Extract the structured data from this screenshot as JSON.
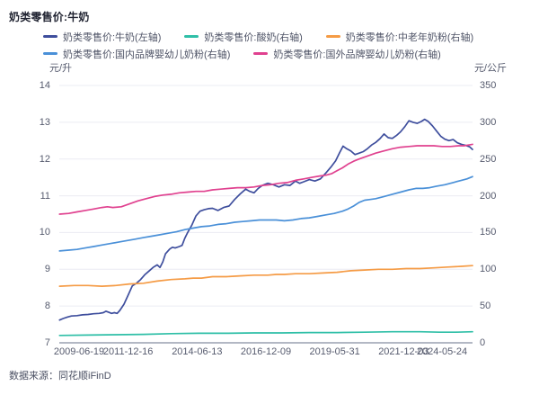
{
  "header": {
    "title": "奶类零售价:牛奶"
  },
  "footer": {
    "source": "数据来源：同花顺iFinD"
  },
  "colors": {
    "milk": "#3e4e9d",
    "yogurt": "#2fbfa7",
    "elder_powder": "#f59b45",
    "domestic_infant": "#4a90d8",
    "foreign_infant": "#e0418f",
    "grid": "#ebecf3",
    "axis_line": "#b3b8c4"
  },
  "chart_data": {
    "type": "line",
    "title": "奶类零售价:牛奶",
    "grid": true,
    "legend_position": "top",
    "legend_rows": [
      [
        0,
        1,
        2
      ],
      [
        3,
        4
      ]
    ],
    "left_axis": {
      "unit": "元/升",
      "min": 7,
      "max": 14,
      "ticks": [
        14,
        13,
        12,
        11,
        10,
        9,
        8,
        7
      ]
    },
    "right_axis": {
      "unit": "元/公斤",
      "min": 0,
      "max": 350,
      "ticks": [
        350,
        300,
        250,
        200,
        150,
        100,
        50,
        0
      ]
    },
    "x_range": [
      2009.46,
      2024.4
    ],
    "x_tick_labels": [
      "2009-06-19",
      "2011-12-16",
      "2014-06-13",
      "2016-12-09",
      "2019-05-31",
      "2021-12-03",
      "2024-05-24"
    ],
    "series": [
      {
        "name": "奶类零售价:牛奶(左轴)",
        "axis": "left",
        "color": "#3e4e9d",
        "points": [
          [
            2009.47,
            7.62
          ],
          [
            2009.6,
            7.66
          ],
          [
            2009.75,
            7.7
          ],
          [
            2009.9,
            7.73
          ],
          [
            2010.1,
            7.74
          ],
          [
            2010.3,
            7.76
          ],
          [
            2010.5,
            7.77
          ],
          [
            2010.7,
            7.79
          ],
          [
            2010.9,
            7.8
          ],
          [
            2011.05,
            7.82
          ],
          [
            2011.15,
            7.86
          ],
          [
            2011.25,
            7.83
          ],
          [
            2011.35,
            7.8
          ],
          [
            2011.45,
            7.82
          ],
          [
            2011.55,
            7.8
          ],
          [
            2011.65,
            7.88
          ],
          [
            2011.8,
            8.05
          ],
          [
            2011.95,
            8.3
          ],
          [
            2012.1,
            8.55
          ],
          [
            2012.25,
            8.62
          ],
          [
            2012.4,
            8.72
          ],
          [
            2012.55,
            8.85
          ],
          [
            2012.7,
            8.95
          ],
          [
            2012.85,
            9.05
          ],
          [
            2013.0,
            9.12
          ],
          [
            2013.1,
            9.05
          ],
          [
            2013.2,
            9.2
          ],
          [
            2013.3,
            9.42
          ],
          [
            2013.45,
            9.55
          ],
          [
            2013.55,
            9.6
          ],
          [
            2013.65,
            9.58
          ],
          [
            2013.8,
            9.62
          ],
          [
            2013.9,
            9.65
          ],
          [
            2014.0,
            9.85
          ],
          [
            2014.1,
            10.0
          ],
          [
            2014.25,
            10.2
          ],
          [
            2014.4,
            10.45
          ],
          [
            2014.55,
            10.58
          ],
          [
            2014.7,
            10.62
          ],
          [
            2014.85,
            10.65
          ],
          [
            2015.0,
            10.66
          ],
          [
            2015.2,
            10.6
          ],
          [
            2015.4,
            10.68
          ],
          [
            2015.6,
            10.72
          ],
          [
            2015.8,
            10.9
          ],
          [
            2016.0,
            11.05
          ],
          [
            2016.2,
            11.18
          ],
          [
            2016.35,
            11.12
          ],
          [
            2016.5,
            11.08
          ],
          [
            2016.65,
            11.2
          ],
          [
            2016.8,
            11.28
          ],
          [
            2017.0,
            11.34
          ],
          [
            2017.2,
            11.3
          ],
          [
            2017.4,
            11.24
          ],
          [
            2017.6,
            11.3
          ],
          [
            2017.8,
            11.28
          ],
          [
            2018.0,
            11.4
          ],
          [
            2018.15,
            11.34
          ],
          [
            2018.3,
            11.38
          ],
          [
            2018.5,
            11.44
          ],
          [
            2018.7,
            11.4
          ],
          [
            2018.9,
            11.46
          ],
          [
            2019.1,
            11.62
          ],
          [
            2019.3,
            11.8
          ],
          [
            2019.45,
            11.95
          ],
          [
            2019.6,
            12.18
          ],
          [
            2019.72,
            12.35
          ],
          [
            2019.85,
            12.28
          ],
          [
            2020.0,
            12.22
          ],
          [
            2020.15,
            12.12
          ],
          [
            2020.3,
            12.16
          ],
          [
            2020.45,
            12.2
          ],
          [
            2020.6,
            12.28
          ],
          [
            2020.75,
            12.38
          ],
          [
            2020.9,
            12.45
          ],
          [
            2021.05,
            12.55
          ],
          [
            2021.2,
            12.68
          ],
          [
            2021.35,
            12.58
          ],
          [
            2021.5,
            12.56
          ],
          [
            2021.65,
            12.64
          ],
          [
            2021.8,
            12.74
          ],
          [
            2021.95,
            12.88
          ],
          [
            2022.1,
            13.04
          ],
          [
            2022.25,
            13.0
          ],
          [
            2022.4,
            12.97
          ],
          [
            2022.55,
            13.02
          ],
          [
            2022.67,
            13.08
          ],
          [
            2022.8,
            13.02
          ],
          [
            2022.95,
            12.9
          ],
          [
            2023.1,
            12.76
          ],
          [
            2023.25,
            12.62
          ],
          [
            2023.4,
            12.54
          ],
          [
            2023.55,
            12.5
          ],
          [
            2023.7,
            12.53
          ],
          [
            2023.85,
            12.44
          ],
          [
            2024.0,
            12.4
          ],
          [
            2024.15,
            12.37
          ],
          [
            2024.3,
            12.33
          ],
          [
            2024.4,
            12.26
          ]
        ]
      },
      {
        "name": "奶类零售价:酸奶(右轴)",
        "axis": "right",
        "color": "#2fbfa7",
        "points": [
          [
            2009.47,
            10
          ],
          [
            2010.5,
            10.5
          ],
          [
            2011.5,
            11
          ],
          [
            2012.5,
            11.5
          ],
          [
            2013.5,
            12.5
          ],
          [
            2014.5,
            13
          ],
          [
            2015.5,
            13
          ],
          [
            2016.5,
            13.5
          ],
          [
            2017.5,
            13.5
          ],
          [
            2018.5,
            14
          ],
          [
            2019.5,
            14
          ],
          [
            2020.5,
            14.5
          ],
          [
            2021.5,
            15
          ],
          [
            2022.5,
            15
          ],
          [
            2023.2,
            14.5
          ],
          [
            2023.8,
            14.5
          ],
          [
            2024.4,
            15
          ]
        ]
      },
      {
        "name": "奶类零售价:中老年奶粉(右轴)",
        "axis": "right",
        "color": "#f59b45",
        "points": [
          [
            2009.47,
            77
          ],
          [
            2010.0,
            78
          ],
          [
            2010.5,
            78
          ],
          [
            2011.0,
            77
          ],
          [
            2011.5,
            78
          ],
          [
            2012.0,
            80
          ],
          [
            2012.5,
            81
          ],
          [
            2013.0,
            84
          ],
          [
            2013.5,
            86
          ],
          [
            2014.0,
            87
          ],
          [
            2014.3,
            88
          ],
          [
            2014.6,
            88
          ],
          [
            2015.0,
            90
          ],
          [
            2015.5,
            90
          ],
          [
            2016.0,
            91
          ],
          [
            2016.5,
            92
          ],
          [
            2017.0,
            92
          ],
          [
            2017.3,
            93
          ],
          [
            2017.6,
            93
          ],
          [
            2018.0,
            94
          ],
          [
            2018.5,
            94
          ],
          [
            2019.0,
            95
          ],
          [
            2019.5,
            96
          ],
          [
            2020.0,
            98
          ],
          [
            2020.5,
            99
          ],
          [
            2021.0,
            100
          ],
          [
            2021.5,
            100
          ],
          [
            2022.0,
            101
          ],
          [
            2022.5,
            101
          ],
          [
            2023.0,
            102
          ],
          [
            2023.5,
            103
          ],
          [
            2024.0,
            104
          ],
          [
            2024.4,
            105
          ]
        ]
      },
      {
        "name": "奶类零售价:国内品牌婴幼儿奶粉(右轴)",
        "axis": "right",
        "color": "#4a90d8",
        "points": [
          [
            2009.47,
            125
          ],
          [
            2009.8,
            126
          ],
          [
            2010.1,
            127
          ],
          [
            2010.4,
            129
          ],
          [
            2010.7,
            131
          ],
          [
            2011.0,
            133
          ],
          [
            2011.3,
            135
          ],
          [
            2011.6,
            137
          ],
          [
            2011.9,
            139
          ],
          [
            2012.2,
            141
          ],
          [
            2012.5,
            143
          ],
          [
            2012.8,
            145
          ],
          [
            2013.1,
            147
          ],
          [
            2013.4,
            149
          ],
          [
            2013.7,
            151
          ],
          [
            2014.0,
            154
          ],
          [
            2014.3,
            156
          ],
          [
            2014.6,
            158
          ],
          [
            2014.9,
            159
          ],
          [
            2015.2,
            161
          ],
          [
            2015.5,
            162
          ],
          [
            2015.8,
            164
          ],
          [
            2016.1,
            165
          ],
          [
            2016.4,
            166
          ],
          [
            2016.7,
            167
          ],
          [
            2017.0,
            167
          ],
          [
            2017.3,
            167
          ],
          [
            2017.6,
            166
          ],
          [
            2017.9,
            167
          ],
          [
            2018.2,
            169
          ],
          [
            2018.5,
            170
          ],
          [
            2018.8,
            172
          ],
          [
            2019.1,
            174
          ],
          [
            2019.4,
            176
          ],
          [
            2019.7,
            179
          ],
          [
            2019.9,
            182
          ],
          [
            2020.1,
            186
          ],
          [
            2020.3,
            191
          ],
          [
            2020.5,
            194
          ],
          [
            2020.7,
            195
          ],
          [
            2020.9,
            196
          ],
          [
            2021.2,
            199
          ],
          [
            2021.5,
            202
          ],
          [
            2021.8,
            205
          ],
          [
            2022.1,
            208
          ],
          [
            2022.35,
            210
          ],
          [
            2022.6,
            210
          ],
          [
            2022.85,
            211
          ],
          [
            2023.1,
            213
          ],
          [
            2023.4,
            215
          ],
          [
            2023.7,
            218
          ],
          [
            2024.0,
            221
          ],
          [
            2024.2,
            223
          ],
          [
            2024.4,
            226
          ]
        ]
      },
      {
        "name": "奶类零售价:国外品牌婴幼儿奶粉(右轴)",
        "axis": "right",
        "color": "#e0418f",
        "points": [
          [
            2009.47,
            175
          ],
          [
            2009.8,
            176
          ],
          [
            2010.1,
            178
          ],
          [
            2010.4,
            180
          ],
          [
            2010.7,
            182
          ],
          [
            2011.0,
            184
          ],
          [
            2011.2,
            185
          ],
          [
            2011.4,
            184
          ],
          [
            2011.7,
            185
          ],
          [
            2012.0,
            189
          ],
          [
            2012.3,
            193
          ],
          [
            2012.6,
            196
          ],
          [
            2012.9,
            199
          ],
          [
            2013.2,
            201
          ],
          [
            2013.5,
            202
          ],
          [
            2013.8,
            204
          ],
          [
            2014.1,
            205
          ],
          [
            2014.4,
            206
          ],
          [
            2014.7,
            206
          ],
          [
            2015.0,
            208
          ],
          [
            2015.3,
            209
          ],
          [
            2015.6,
            210
          ],
          [
            2015.9,
            211
          ],
          [
            2016.2,
            211
          ],
          [
            2016.5,
            212
          ],
          [
            2016.8,
            214
          ],
          [
            2017.1,
            215
          ],
          [
            2017.4,
            217
          ],
          [
            2017.7,
            218
          ],
          [
            2018.0,
            221
          ],
          [
            2018.3,
            223
          ],
          [
            2018.6,
            225
          ],
          [
            2018.9,
            227
          ],
          [
            2019.1,
            228
          ],
          [
            2019.3,
            230
          ],
          [
            2019.5,
            234
          ],
          [
            2019.7,
            238
          ],
          [
            2019.9,
            243
          ],
          [
            2020.1,
            247
          ],
          [
            2020.3,
            250
          ],
          [
            2020.6,
            254
          ],
          [
            2020.9,
            258
          ],
          [
            2021.2,
            261
          ],
          [
            2021.5,
            264
          ],
          [
            2021.8,
            266
          ],
          [
            2022.1,
            267
          ],
          [
            2022.4,
            268
          ],
          [
            2022.7,
            268
          ],
          [
            2023.0,
            268
          ],
          [
            2023.3,
            267
          ],
          [
            2023.6,
            267
          ],
          [
            2023.9,
            268
          ],
          [
            2024.1,
            268
          ],
          [
            2024.25,
            269
          ],
          [
            2024.4,
            270
          ]
        ]
      }
    ]
  }
}
